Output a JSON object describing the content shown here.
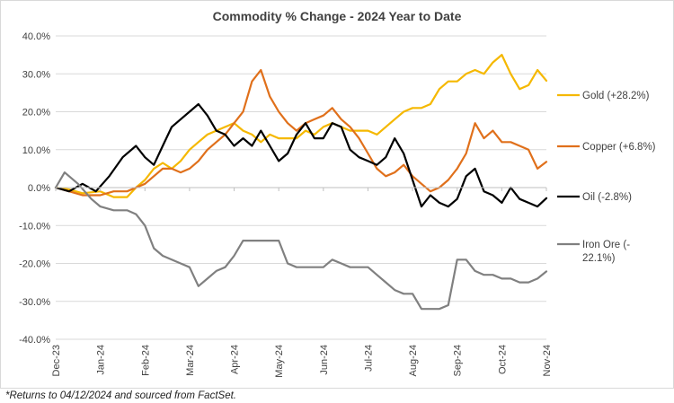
{
  "chart_data": {
    "type": "line",
    "title": "Commodity % Change - 2024 Year to Date",
    "xlabel": "",
    "ylabel": "",
    "ylim": [
      -40,
      40
    ],
    "y_ticks": [
      "40.0%",
      "30.0%",
      "20.0%",
      "10.0%",
      "0.0%",
      "-10.0%",
      "-20.0%",
      "-30.0%",
      "-40.0%"
    ],
    "x_ticks": [
      "Dec-23",
      "Jan-24",
      "Feb-24",
      "Mar-24",
      "Apr-24",
      "May-24",
      "Jun-24",
      "Jul-24",
      "Aug-24",
      "Sep-24",
      "Oct-24",
      "Nov-24"
    ],
    "x_range": [
      0,
      11
    ],
    "grid": true,
    "legend_position": "right",
    "series": [
      {
        "name": "Gold (+28.2%)",
        "color": "#F5B800",
        "points": [
          [
            0,
            0
          ],
          [
            0.3,
            -0.5
          ],
          [
            0.6,
            -1.5
          ],
          [
            1,
            -1
          ],
          [
            1.3,
            -2.5
          ],
          [
            1.6,
            -2.5
          ],
          [
            1.8,
            0
          ],
          [
            2,
            2
          ],
          [
            2.2,
            5
          ],
          [
            2.4,
            6.5
          ],
          [
            2.6,
            5
          ],
          [
            2.8,
            7
          ],
          [
            3,
            10
          ],
          [
            3.2,
            12
          ],
          [
            3.4,
            14
          ],
          [
            3.6,
            15
          ],
          [
            3.8,
            16
          ],
          [
            4,
            17
          ],
          [
            4.2,
            15
          ],
          [
            4.4,
            14
          ],
          [
            4.6,
            12
          ],
          [
            4.8,
            14
          ],
          [
            5,
            13
          ],
          [
            5.2,
            13
          ],
          [
            5.4,
            13
          ],
          [
            5.6,
            15
          ],
          [
            5.8,
            14
          ],
          [
            6,
            16
          ],
          [
            6.2,
            17
          ],
          [
            6.4,
            16
          ],
          [
            6.6,
            15
          ],
          [
            6.8,
            15
          ],
          [
            7,
            15
          ],
          [
            7.2,
            14
          ],
          [
            7.4,
            16
          ],
          [
            7.6,
            18
          ],
          [
            7.8,
            20
          ],
          [
            8,
            21
          ],
          [
            8.2,
            21
          ],
          [
            8.4,
            22
          ],
          [
            8.6,
            26
          ],
          [
            8.8,
            28
          ],
          [
            9,
            28
          ],
          [
            9.2,
            30
          ],
          [
            9.4,
            31
          ],
          [
            9.6,
            30
          ],
          [
            9.8,
            33
          ],
          [
            10,
            35
          ],
          [
            10.2,
            30
          ],
          [
            10.4,
            26
          ],
          [
            10.6,
            27
          ],
          [
            10.8,
            31
          ],
          [
            11,
            28.2
          ]
        ]
      },
      {
        "name": "Copper (+6.8%)",
        "color": "#E0701B",
        "points": [
          [
            0,
            0
          ],
          [
            0.3,
            -1
          ],
          [
            0.6,
            -2
          ],
          [
            1,
            -2
          ],
          [
            1.3,
            -1
          ],
          [
            1.6,
            -1
          ],
          [
            1.8,
            0
          ],
          [
            2,
            1
          ],
          [
            2.2,
            3
          ],
          [
            2.4,
            5
          ],
          [
            2.6,
            5
          ],
          [
            2.8,
            4
          ],
          [
            3,
            5
          ],
          [
            3.2,
            7
          ],
          [
            3.4,
            10
          ],
          [
            3.6,
            12
          ],
          [
            3.8,
            14
          ],
          [
            4,
            17
          ],
          [
            4.2,
            20
          ],
          [
            4.4,
            28
          ],
          [
            4.6,
            31
          ],
          [
            4.8,
            24
          ],
          [
            5,
            20
          ],
          [
            5.2,
            17
          ],
          [
            5.4,
            15
          ],
          [
            5.6,
            17
          ],
          [
            5.8,
            18
          ],
          [
            6,
            19
          ],
          [
            6.2,
            21
          ],
          [
            6.4,
            18
          ],
          [
            6.6,
            16
          ],
          [
            6.8,
            13
          ],
          [
            7,
            9
          ],
          [
            7.2,
            5
          ],
          [
            7.4,
            3
          ],
          [
            7.6,
            4
          ],
          [
            7.8,
            6
          ],
          [
            8,
            3
          ],
          [
            8.2,
            1
          ],
          [
            8.4,
            -1
          ],
          [
            8.6,
            0
          ],
          [
            8.8,
            2
          ],
          [
            9,
            5
          ],
          [
            9.2,
            9
          ],
          [
            9.4,
            17
          ],
          [
            9.6,
            13
          ],
          [
            9.8,
            15
          ],
          [
            10,
            12
          ],
          [
            10.2,
            12
          ],
          [
            10.4,
            11
          ],
          [
            10.6,
            10
          ],
          [
            10.8,
            5
          ],
          [
            11,
            6.8
          ]
        ]
      },
      {
        "name": "Oil (-2.8%)",
        "color": "#000000",
        "points": [
          [
            0,
            0
          ],
          [
            0.3,
            -1
          ],
          [
            0.6,
            1
          ],
          [
            0.9,
            -1
          ],
          [
            1.2,
            3
          ],
          [
            1.5,
            8
          ],
          [
            1.8,
            11
          ],
          [
            2,
            8
          ],
          [
            2.2,
            6
          ],
          [
            2.4,
            11
          ],
          [
            2.6,
            16
          ],
          [
            2.8,
            18
          ],
          [
            3,
            20
          ],
          [
            3.2,
            22
          ],
          [
            3.4,
            19
          ],
          [
            3.6,
            15
          ],
          [
            3.8,
            14
          ],
          [
            4,
            11
          ],
          [
            4.2,
            13
          ],
          [
            4.4,
            11
          ],
          [
            4.6,
            15
          ],
          [
            4.8,
            11
          ],
          [
            5,
            7
          ],
          [
            5.2,
            9
          ],
          [
            5.4,
            14
          ],
          [
            5.6,
            17
          ],
          [
            5.8,
            13
          ],
          [
            6,
            13
          ],
          [
            6.2,
            17
          ],
          [
            6.4,
            16
          ],
          [
            6.6,
            10
          ],
          [
            6.8,
            8
          ],
          [
            7,
            7
          ],
          [
            7.2,
            6
          ],
          [
            7.4,
            8
          ],
          [
            7.6,
            13
          ],
          [
            7.8,
            9
          ],
          [
            8,
            2
          ],
          [
            8.2,
            -5
          ],
          [
            8.4,
            -2
          ],
          [
            8.6,
            -4
          ],
          [
            8.8,
            -5
          ],
          [
            9,
            -3
          ],
          [
            9.2,
            3
          ],
          [
            9.4,
            5
          ],
          [
            9.6,
            -1
          ],
          [
            9.8,
            -2
          ],
          [
            10,
            -4
          ],
          [
            10.2,
            0
          ],
          [
            10.4,
            -3
          ],
          [
            10.6,
            -4
          ],
          [
            10.8,
            -5
          ],
          [
            11,
            -2.8
          ]
        ]
      },
      {
        "name": "Iron Ore (-22.1%)",
        "color": "#808080",
        "points": [
          [
            0,
            0
          ],
          [
            0.2,
            4
          ],
          [
            0.5,
            1
          ],
          [
            0.8,
            -3
          ],
          [
            1,
            -5
          ],
          [
            1.3,
            -6
          ],
          [
            1.6,
            -6
          ],
          [
            1.8,
            -7
          ],
          [
            2,
            -10
          ],
          [
            2.2,
            -16
          ],
          [
            2.4,
            -18
          ],
          [
            2.6,
            -19
          ],
          [
            2.8,
            -20
          ],
          [
            3,
            -21
          ],
          [
            3.2,
            -26
          ],
          [
            3.4,
            -24
          ],
          [
            3.6,
            -22
          ],
          [
            3.8,
            -21
          ],
          [
            4,
            -18
          ],
          [
            4.2,
            -14
          ],
          [
            4.4,
            -14
          ],
          [
            4.6,
            -14
          ],
          [
            4.8,
            -14
          ],
          [
            5,
            -14
          ],
          [
            5.2,
            -20
          ],
          [
            5.4,
            -21
          ],
          [
            5.6,
            -21
          ],
          [
            5.8,
            -21
          ],
          [
            6,
            -21
          ],
          [
            6.2,
            -19
          ],
          [
            6.4,
            -20
          ],
          [
            6.6,
            -21
          ],
          [
            6.8,
            -21
          ],
          [
            7,
            -21
          ],
          [
            7.2,
            -23
          ],
          [
            7.4,
            -25
          ],
          [
            7.6,
            -27
          ],
          [
            7.8,
            -28
          ],
          [
            8,
            -28
          ],
          [
            8.2,
            -32
          ],
          [
            8.4,
            -32
          ],
          [
            8.6,
            -32
          ],
          [
            8.8,
            -31
          ],
          [
            9,
            -19
          ],
          [
            9.2,
            -19
          ],
          [
            9.4,
            -22
          ],
          [
            9.6,
            -23
          ],
          [
            9.8,
            -23
          ],
          [
            10,
            -24
          ],
          [
            10.2,
            -24
          ],
          [
            10.4,
            -25
          ],
          [
            10.6,
            -25
          ],
          [
            10.8,
            -24
          ],
          [
            11,
            -22.1
          ]
        ]
      }
    ],
    "legend_lines": [
      [
        "Gold (+28.2%)"
      ],
      [
        "Copper (+6.8%)"
      ],
      [
        "Oil (-2.8%)"
      ],
      [
        "Iron Ore (-",
        "22.1%)"
      ]
    ]
  },
  "footnote": "*Returns to 04/12/2024 and sourced from FactSet."
}
